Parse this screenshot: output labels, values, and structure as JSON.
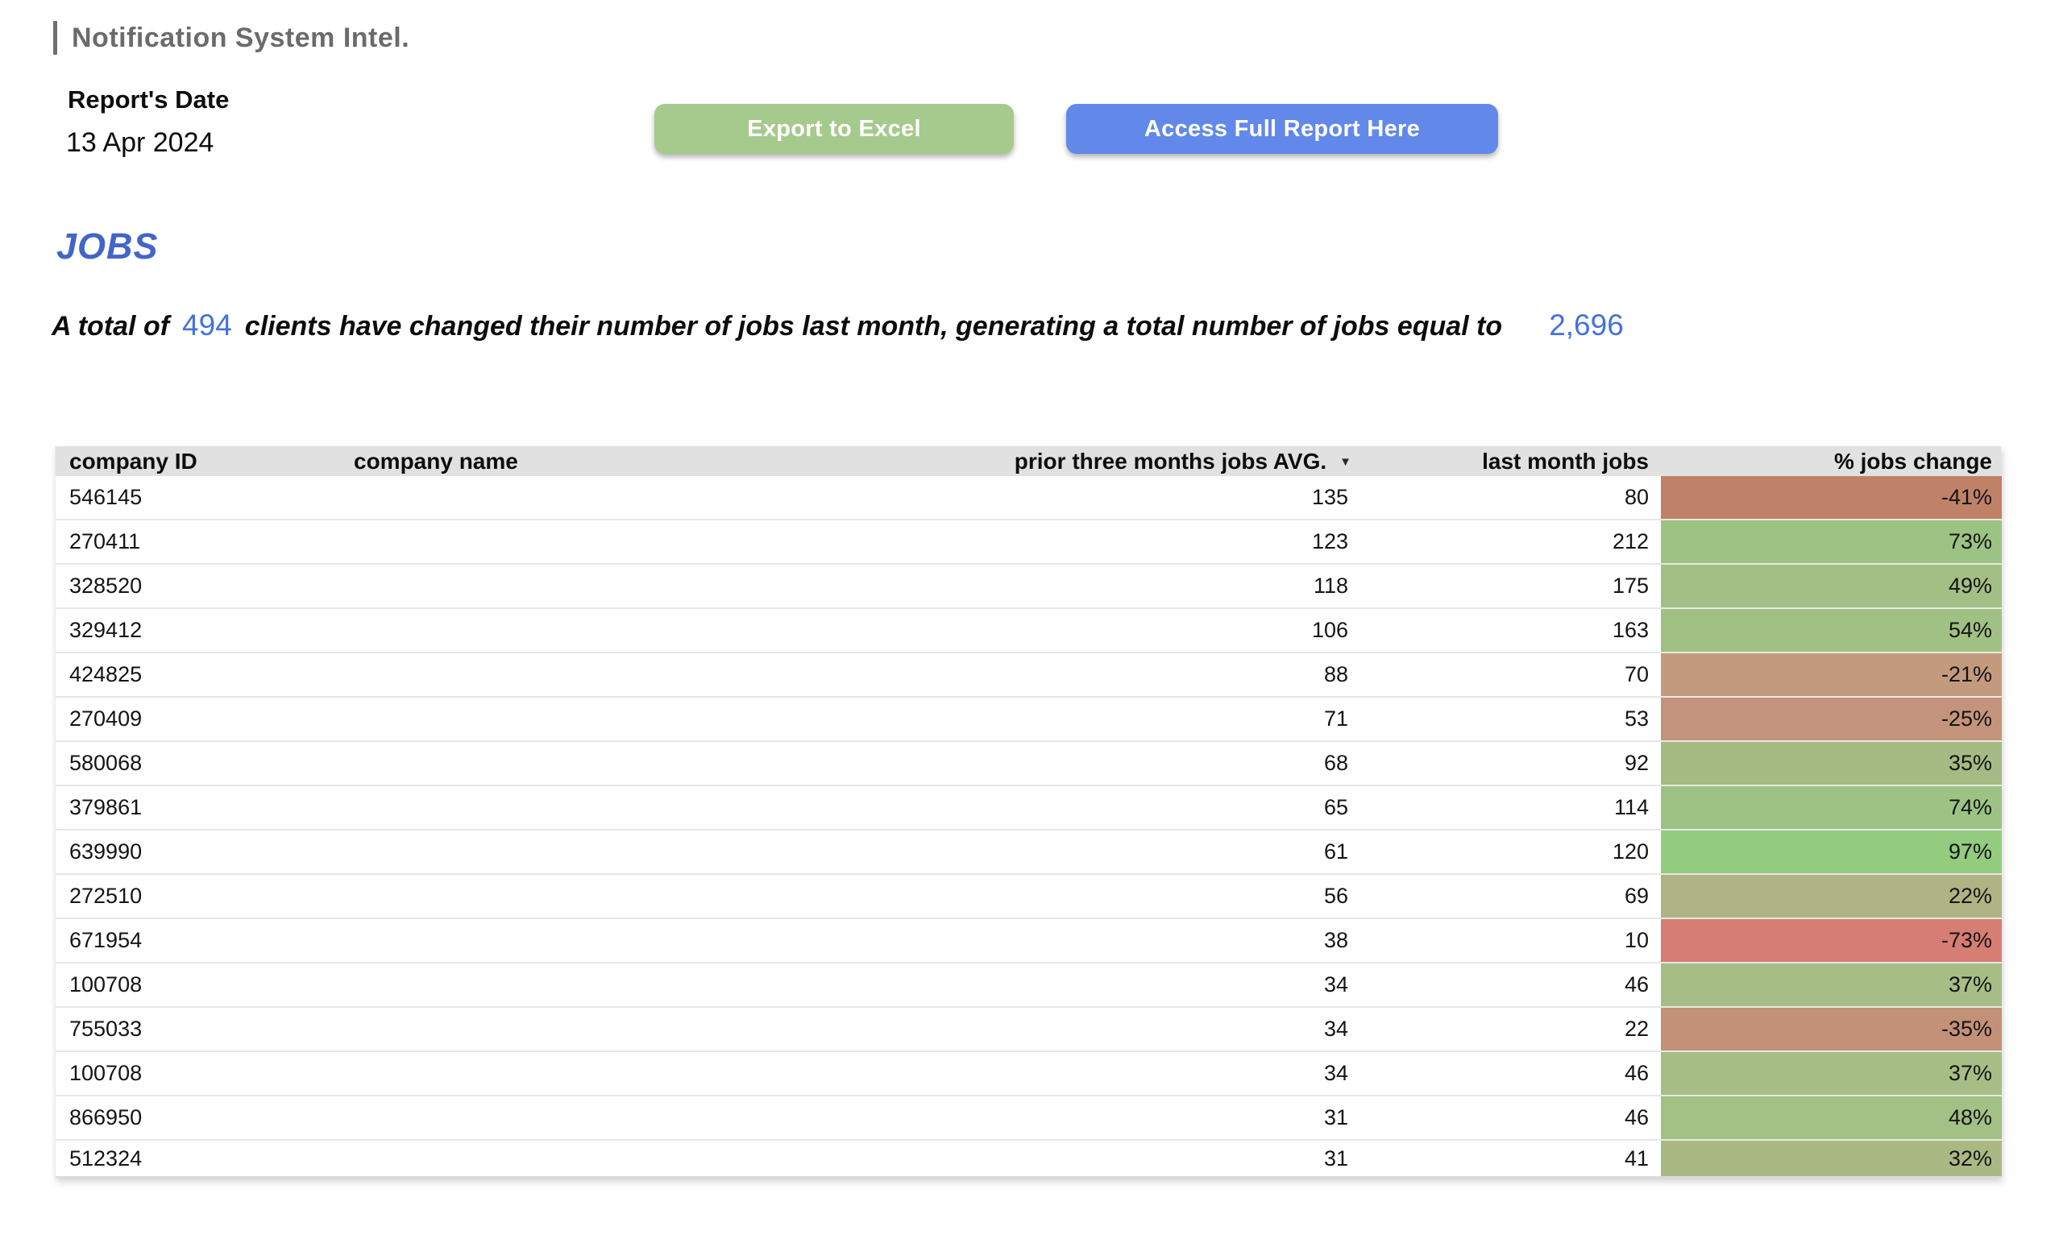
{
  "header": {
    "title": "Notification System Intel."
  },
  "report_date": {
    "label": "Report's Date",
    "value": "13 Apr 2024"
  },
  "actions": {
    "export_label": "Export to Excel",
    "access_label": "Access Full Report Here"
  },
  "section": {
    "title": "JOBS"
  },
  "summary": {
    "part1": "A total of",
    "clients_count": "494",
    "part2": "clients have changed their number of jobs last month, generating a total number of jobs equal to",
    "total_jobs": "2,696"
  },
  "colors": {
    "accent_blue": "#4472dd",
    "jobs_heading_blue": "#4365c8",
    "export_button_green": "#a6ca8d",
    "access_button_blue": "#6289ea",
    "table_header_gray": "#e1e1e1",
    "title_gray": "#6b6b6b"
  },
  "table": {
    "columns": [
      "company ID",
      "company name",
      "prior three months jobs AVG.",
      "last month jobs",
      "% jobs change"
    ],
    "sorted_column": "prior three months jobs AVG.",
    "sort_indicator": "▼",
    "rows": [
      {
        "company_id": "546145",
        "company_name": "",
        "prior_avg": "135",
        "last_month": "80",
        "pct_change": "-41%",
        "pct_color": "#bf8268"
      },
      {
        "company_id": "270411",
        "company_name": "",
        "prior_avg": "123",
        "last_month": "212",
        "pct_change": "73%",
        "pct_color": "#9cc384"
      },
      {
        "company_id": "328520",
        "company_name": "",
        "prior_avg": "118",
        "last_month": "175",
        "pct_change": "49%",
        "pct_color": "#a3bf85"
      },
      {
        "company_id": "329412",
        "company_name": "",
        "prior_avg": "106",
        "last_month": "163",
        "pct_change": "54%",
        "pct_color": "#a1c184"
      },
      {
        "company_id": "424825",
        "company_name": "",
        "prior_avg": "88",
        "last_month": "70",
        "pct_change": "-21%",
        "pct_color": "#c49a7e"
      },
      {
        "company_id": "270409",
        "company_name": "",
        "prior_avg": "71",
        "last_month": "53",
        "pct_change": "-25%",
        "pct_color": "#c3947b"
      },
      {
        "company_id": "580068",
        "company_name": "",
        "prior_avg": "68",
        "last_month": "92",
        "pct_change": "35%",
        "pct_color": "#a6ba84"
      },
      {
        "company_id": "379861",
        "company_name": "",
        "prior_avg": "65",
        "last_month": "114",
        "pct_change": "74%",
        "pct_color": "#9cc384"
      },
      {
        "company_id": "639990",
        "company_name": "",
        "prior_avg": "61",
        "last_month": "120",
        "pct_change": "97%",
        "pct_color": "#93cb7f"
      },
      {
        "company_id": "272510",
        "company_name": "",
        "prior_avg": "56",
        "last_month": "69",
        "pct_change": "22%",
        "pct_color": "#aeb483"
      },
      {
        "company_id": "671954",
        "company_name": "",
        "prior_avg": "38",
        "last_month": "10",
        "pct_change": "-73%",
        "pct_color": "#d67d74"
      },
      {
        "company_id": "100708",
        "company_name": "",
        "prior_avg": "34",
        "last_month": "46",
        "pct_change": "37%",
        "pct_color": "#a6be85"
      },
      {
        "company_id": "755033",
        "company_name": "",
        "prior_avg": "34",
        "last_month": "22",
        "pct_change": "-35%",
        "pct_color": "#c39178"
      },
      {
        "company_id": "100708",
        "company_name": "",
        "prior_avg": "34",
        "last_month": "46",
        "pct_change": "37%",
        "pct_color": "#a6be85"
      },
      {
        "company_id": "866950",
        "company_name": "",
        "prior_avg": "31",
        "last_month": "46",
        "pct_change": "48%",
        "pct_color": "#a3c085"
      },
      {
        "company_id": "512324",
        "company_name": "",
        "prior_avg": "31",
        "last_month": "41",
        "pct_change": "32%",
        "pct_color": "#aab983"
      }
    ]
  }
}
